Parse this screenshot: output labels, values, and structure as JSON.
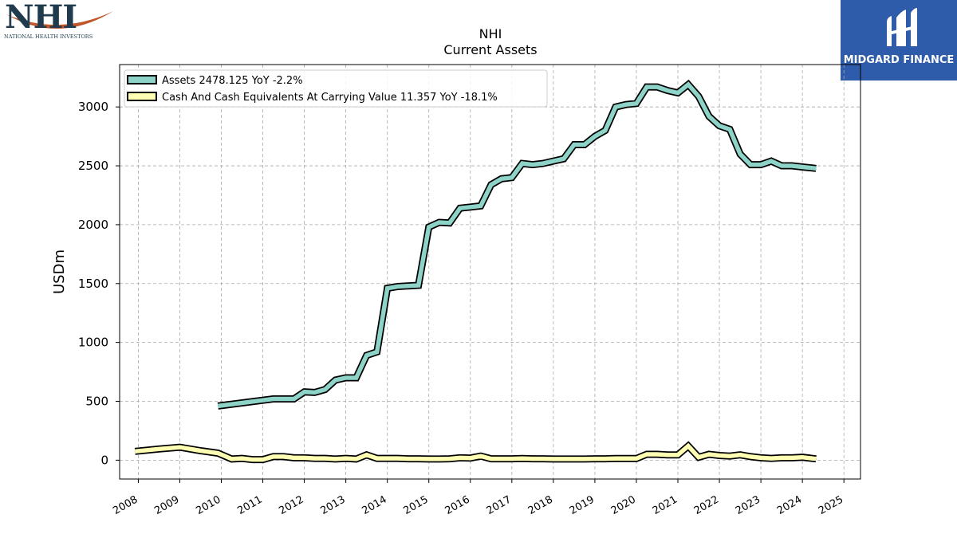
{
  "logos": {
    "company_letters": "NHI",
    "company_name": "NATIONAL HEALTH INVESTORS",
    "brand": "MIDGARD FINANCE",
    "brand_color": "#2f5bab",
    "company_accent": "#c0562a"
  },
  "chart_data": {
    "type": "line",
    "title": "NHI",
    "subtitle": "Current  Assets",
    "ylabel": "USDm",
    "xlabel": "",
    "xlim": [
      2007.55,
      2025.4
    ],
    "ylim": [
      -160,
      3360
    ],
    "yticks": [
      0,
      500,
      1000,
      1500,
      2000,
      2500,
      3000
    ],
    "xticks": [
      "2008",
      "2009",
      "2010",
      "2011",
      "2012",
      "2013",
      "2014",
      "2015",
      "2016",
      "2017",
      "2018",
      "2019",
      "2020",
      "2021",
      "2022",
      "2023",
      "2024",
      "2025"
    ],
    "grid": true,
    "legend_position": "top-left",
    "series": [
      {
        "name": "Assets  2478.125 YoY -2.2%",
        "color": "#8dd3c7",
        "points": [
          [
            2009.92,
            460
          ],
          [
            2011.25,
            520
          ],
          [
            2011.5,
            520
          ],
          [
            2011.75,
            520
          ],
          [
            2012.0,
            580
          ],
          [
            2012.25,
            575
          ],
          [
            2012.5,
            600
          ],
          [
            2012.75,
            680
          ],
          [
            2013.0,
            700
          ],
          [
            2013.25,
            700
          ],
          [
            2013.5,
            890
          ],
          [
            2013.75,
            920
          ],
          [
            2014.0,
            1460
          ],
          [
            2014.25,
            1475
          ],
          [
            2014.5,
            1480
          ],
          [
            2014.75,
            1485
          ],
          [
            2015.0,
            1980
          ],
          [
            2015.25,
            2020
          ],
          [
            2015.5,
            2015
          ],
          [
            2015.75,
            2140
          ],
          [
            2016.0,
            2150
          ],
          [
            2016.25,
            2160
          ],
          [
            2016.5,
            2340
          ],
          [
            2016.75,
            2390
          ],
          [
            2017.0,
            2400
          ],
          [
            2017.25,
            2520
          ],
          [
            2017.5,
            2510
          ],
          [
            2017.75,
            2520
          ],
          [
            2018.0,
            2540
          ],
          [
            2018.25,
            2560
          ],
          [
            2018.5,
            2680
          ],
          [
            2018.75,
            2680
          ],
          [
            2019.0,
            2750
          ],
          [
            2019.25,
            2800
          ],
          [
            2019.5,
            3000
          ],
          [
            2019.75,
            3020
          ],
          [
            2020.0,
            3030
          ],
          [
            2020.25,
            3170
          ],
          [
            2020.5,
            3170
          ],
          [
            2020.75,
            3140
          ],
          [
            2021.0,
            3120
          ],
          [
            2021.25,
            3190
          ],
          [
            2021.5,
            3090
          ],
          [
            2021.75,
            2920
          ],
          [
            2022.0,
            2840
          ],
          [
            2022.25,
            2810
          ],
          [
            2022.5,
            2600
          ],
          [
            2022.75,
            2510
          ],
          [
            2023.0,
            2510
          ],
          [
            2023.25,
            2540
          ],
          [
            2023.5,
            2500
          ],
          [
            2023.75,
            2500
          ],
          [
            2024.0,
            2490
          ],
          [
            2024.33,
            2478
          ]
        ]
      },
      {
        "name": "Cash And Cash Equivalents At Carrying Value  11.357 YoY -18.1%",
        "color": "#ffffb3",
        "points": [
          [
            2007.92,
            75
          ],
          [
            2008.5,
            95
          ],
          [
            2009.0,
            110
          ],
          [
            2009.5,
            80
          ],
          [
            2009.92,
            60
          ],
          [
            2010.25,
            10
          ],
          [
            2010.5,
            15
          ],
          [
            2010.75,
            5
          ],
          [
            2011.0,
            5
          ],
          [
            2011.25,
            30
          ],
          [
            2011.5,
            30
          ],
          [
            2011.75,
            20
          ],
          [
            2012.0,
            20
          ],
          [
            2012.25,
            15
          ],
          [
            2012.5,
            15
          ],
          [
            2012.75,
            10
          ],
          [
            2013.0,
            15
          ],
          [
            2013.25,
            10
          ],
          [
            2013.5,
            45
          ],
          [
            2013.75,
            15
          ],
          [
            2014.0,
            15
          ],
          [
            2014.25,
            15
          ],
          [
            2014.5,
            12
          ],
          [
            2014.75,
            12
          ],
          [
            2015.0,
            10
          ],
          [
            2015.25,
            10
          ],
          [
            2015.5,
            12
          ],
          [
            2015.75,
            20
          ],
          [
            2016.0,
            18
          ],
          [
            2016.25,
            35
          ],
          [
            2016.5,
            12
          ],
          [
            2016.75,
            12
          ],
          [
            2017.0,
            12
          ],
          [
            2017.25,
            14
          ],
          [
            2017.5,
            12
          ],
          [
            2017.75,
            12
          ],
          [
            2018.0,
            10
          ],
          [
            2018.25,
            10
          ],
          [
            2018.5,
            10
          ],
          [
            2018.75,
            10
          ],
          [
            2019.0,
            12
          ],
          [
            2019.25,
            12
          ],
          [
            2019.5,
            14
          ],
          [
            2019.75,
            14
          ],
          [
            2020.0,
            14
          ],
          [
            2020.25,
            50
          ],
          [
            2020.5,
            50
          ],
          [
            2020.75,
            45
          ],
          [
            2021.0,
            45
          ],
          [
            2021.25,
            120
          ],
          [
            2021.5,
            25
          ],
          [
            2021.75,
            50
          ],
          [
            2022.0,
            40
          ],
          [
            2022.25,
            35
          ],
          [
            2022.5,
            45
          ],
          [
            2022.75,
            30
          ],
          [
            2023.0,
            20
          ],
          [
            2023.25,
            15
          ],
          [
            2023.5,
            20
          ],
          [
            2023.75,
            20
          ],
          [
            2024.0,
            25
          ],
          [
            2024.33,
            11
          ]
        ]
      }
    ]
  }
}
